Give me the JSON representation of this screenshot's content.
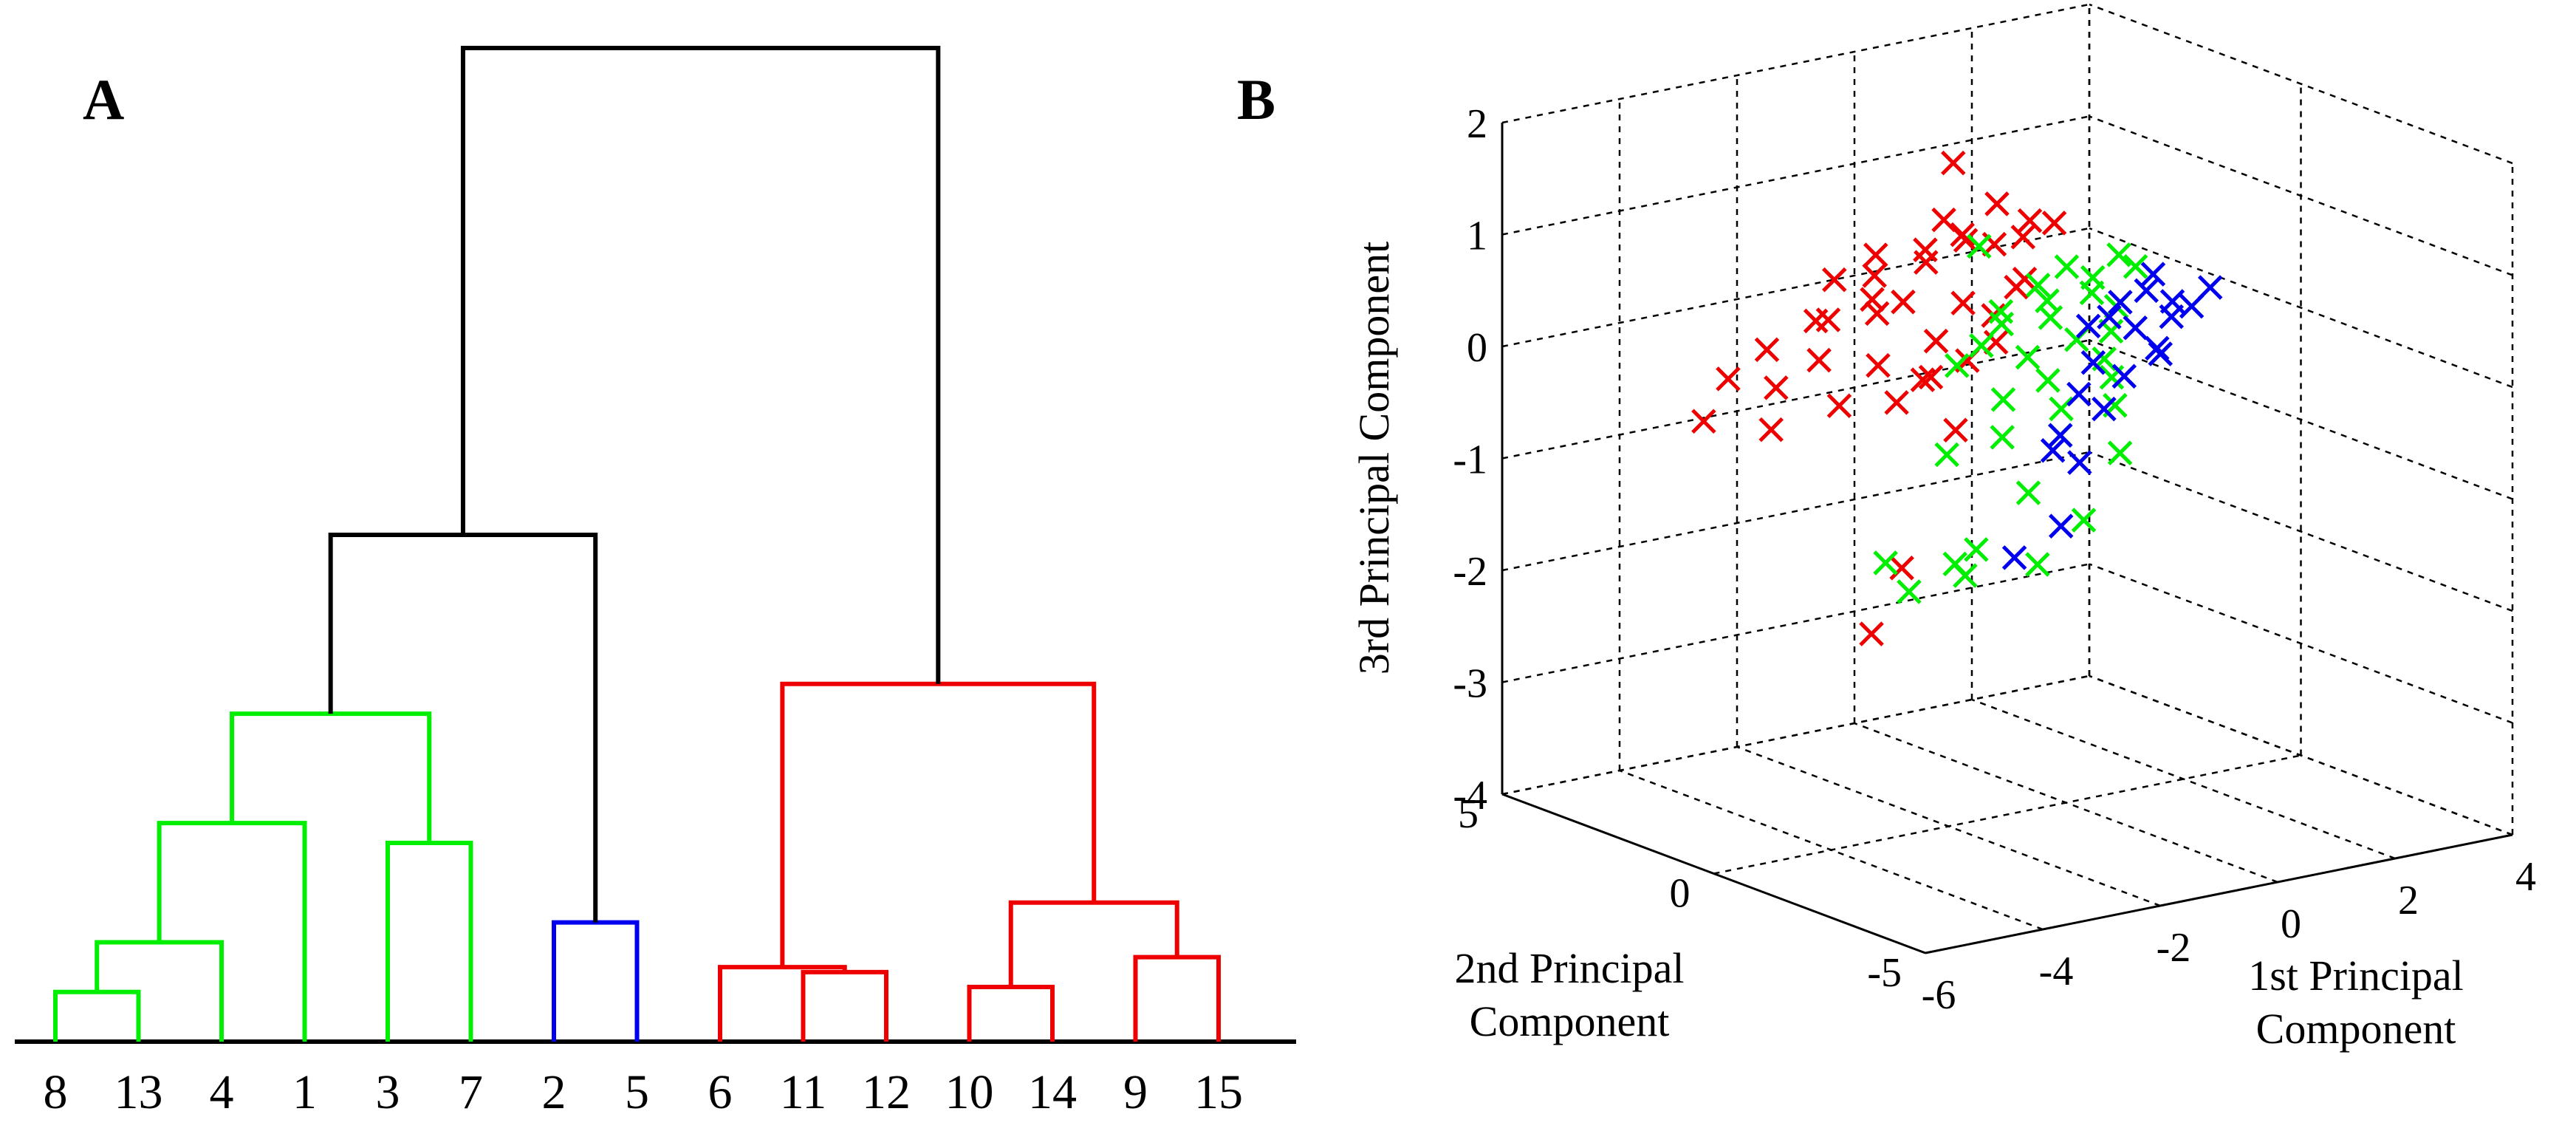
{
  "panel_a": {
    "letter": "A"
  },
  "panel_b": {
    "letter": "B"
  },
  "colors": {
    "green": "#00ee00",
    "blue": "#0000ee",
    "red": "#ee0000",
    "black": "#000000"
  },
  "chart_data": [
    {
      "type": "dendrogram",
      "leaves": [
        "8",
        "13",
        "4",
        "1",
        "3",
        "7",
        "2",
        "5",
        "6",
        "11",
        "12",
        "10",
        "14",
        "9",
        "15"
      ],
      "height_range": [
        0,
        10
      ],
      "merges": [
        {
          "id": "g1",
          "children": [
            "8",
            "13"
          ],
          "height": 0.5,
          "color": "green"
        },
        {
          "id": "g2",
          "children": [
            "g1",
            "4"
          ],
          "height": 1.0,
          "color": "green"
        },
        {
          "id": "g3",
          "children": [
            "g2",
            "1"
          ],
          "height": 2.2,
          "color": "green"
        },
        {
          "id": "g4",
          "children": [
            "3",
            "7"
          ],
          "height": 2.0,
          "color": "green"
        },
        {
          "id": "g5",
          "children": [
            "g3",
            "g4"
          ],
          "height": 3.3,
          "color": "green"
        },
        {
          "id": "b1",
          "children": [
            "2",
            "5"
          ],
          "height": 1.2,
          "color": "blue"
        },
        {
          "id": "k1",
          "children": [
            "g5",
            "b1"
          ],
          "height": 5.1,
          "color": "black"
        },
        {
          "id": "r1",
          "children": [
            "11",
            "12"
          ],
          "height": 0.7,
          "color": "red"
        },
        {
          "id": "r2",
          "children": [
            "6",
            "r1"
          ],
          "height": 0.75,
          "color": "red"
        },
        {
          "id": "r3",
          "children": [
            "10",
            "14"
          ],
          "height": 0.55,
          "color": "red"
        },
        {
          "id": "r4",
          "children": [
            "9",
            "15"
          ],
          "height": 0.85,
          "color": "red"
        },
        {
          "id": "r5",
          "children": [
            "r3",
            "r4"
          ],
          "height": 1.4,
          "color": "red"
        },
        {
          "id": "r6",
          "children": [
            "r2",
            "r5"
          ],
          "height": 3.6,
          "color": "red"
        },
        {
          "id": "k2",
          "children": [
            "k1",
            "r6"
          ],
          "height": 10.0,
          "color": "black"
        }
      ]
    },
    {
      "type": "scatter3d",
      "xlabel": "1st Principal Component",
      "ylabel": "2nd Principal Component",
      "zlabel": "3rd Principal Component",
      "xlim": [
        -6,
        4
      ],
      "ylim": [
        -5,
        5
      ],
      "zlim": [
        -4,
        2
      ],
      "xticks": [
        "-6",
        "-4",
        "-2",
        "0",
        "2",
        "4"
      ],
      "yticks": [
        "-5",
        "0",
        "5"
      ],
      "zticks": [
        "-4",
        "-3",
        "-2",
        "-1",
        "0",
        "1",
        "2"
      ],
      "marker": "x",
      "grid": true,
      "series": [
        {
          "color": "red",
          "points": [
            [
              -1.2,
              1.0,
              1.7
            ],
            [
              -0.6,
              0.8,
              1.3
            ],
            [
              -0.4,
              0.3,
              1.2
            ],
            [
              -0.2,
              0.0,
              1.2
            ],
            [
              -0.9,
              1.2,
              1.0
            ],
            [
              -0.7,
              1.4,
              0.9
            ],
            [
              -0.5,
              1.0,
              0.9
            ],
            [
              -0.3,
              0.6,
              1.0
            ],
            [
              -1.8,
              2.0,
              0.8
            ],
            [
              -1.1,
              1.8,
              0.8
            ],
            [
              -0.8,
              2.2,
              0.6
            ],
            [
              -0.2,
              0.9,
              0.5
            ],
            [
              -1.5,
              2.5,
              0.3
            ],
            [
              -0.9,
              2.6,
              0.2
            ],
            [
              -0.6,
              1.6,
              0.3
            ],
            [
              -0.3,
              1.3,
              0.2
            ],
            [
              -2.1,
              3.0,
              0.1
            ],
            [
              -1.6,
              3.4,
              0.0
            ],
            [
              -1.2,
              2.8,
              0.1
            ],
            [
              -0.7,
              2.1,
              -0.1
            ],
            [
              -0.4,
              1.1,
              0.0
            ],
            [
              -2.5,
              3.6,
              -0.2
            ],
            [
              -1.9,
              3.2,
              -0.3
            ],
            [
              -1.4,
              2.5,
              -0.3
            ],
            [
              -1.0,
              2.0,
              -0.4
            ],
            [
              -0.6,
              1.5,
              -0.2
            ],
            [
              -2.8,
              4.1,
              -0.5
            ],
            [
              -2.2,
              3.8,
              -0.6
            ],
            [
              -1.7,
              3.0,
              -0.7
            ],
            [
              -1.3,
              2.2,
              -0.6
            ],
            [
              -0.8,
              1.5,
              -0.8
            ],
            [
              -3.0,
              4.4,
              -0.9
            ],
            [
              -2.5,
              3.5,
              -0.9
            ],
            [
              -1.5,
              1.8,
              -2.0
            ],
            [
              -1.8,
              2.1,
              -2.6
            ],
            [
              -0.2,
              0.7,
              0.6
            ],
            [
              -1.0,
              1.5,
              1.1
            ],
            [
              -2.0,
              2.7,
              0.5
            ],
            [
              -0.5,
              2.5,
              -0.5
            ],
            [
              -1.1,
              3.0,
              0.4
            ]
          ]
        },
        {
          "color": "green",
          "points": [
            [
              0.3,
              0.4,
              0.7
            ],
            [
              0.6,
              0.2,
              0.6
            ],
            [
              0.1,
              0.8,
              0.5
            ],
            [
              0.8,
              0.5,
              0.4
            ],
            [
              0.4,
              1.0,
              0.3
            ],
            [
              1.0,
              0.2,
              0.3
            ],
            [
              -0.1,
              1.4,
              0.2
            ],
            [
              0.6,
              1.2,
              0.1
            ],
            [
              1.2,
              0.6,
              0.0
            ],
            [
              0.2,
              1.8,
              0.0
            ],
            [
              0.9,
              1.0,
              -0.1
            ],
            [
              0.0,
              2.0,
              -0.2
            ],
            [
              0.5,
              1.6,
              -0.3
            ],
            [
              1.3,
              0.9,
              -0.3
            ],
            [
              -0.2,
              2.3,
              -0.4
            ],
            [
              0.7,
              1.4,
              -0.5
            ],
            [
              1.5,
              1.0,
              -0.5
            ],
            [
              0.3,
              1.9,
              -0.7
            ],
            [
              1.0,
              1.5,
              -0.8
            ],
            [
              1.7,
              1.2,
              -0.8
            ],
            [
              0.5,
              2.2,
              -1.1
            ],
            [
              1.2,
              1.8,
              -1.1
            ],
            [
              -0.3,
              2.4,
              -1.2
            ],
            [
              2.0,
              1.5,
              -1.3
            ],
            [
              0.8,
              2.0,
              -1.6
            ],
            [
              1.6,
              1.8,
              -1.9
            ],
            [
              0.2,
              2.4,
              -2.1
            ],
            [
              1.1,
              2.2,
              -2.3
            ],
            [
              -0.8,
              2.6,
              -2.4
            ],
            [
              0.2,
              2.9,
              -2.3
            ],
            [
              1.4,
              0.3,
              0.6
            ],
            [
              0.9,
              0.0,
              0.8
            ],
            [
              -0.4,
              1.5,
              0.8
            ],
            [
              0.3,
              2.8,
              -2.4
            ],
            [
              -1.2,
              2.6,
              -2.1
            ]
          ]
        },
        {
          "color": "blue",
          "points": [
            [
              1.5,
              0.8,
              0.2
            ],
            [
              1.8,
              0.6,
              0.3
            ],
            [
              2.1,
              0.4,
              0.2
            ],
            [
              1.7,
              0.3,
              0.5
            ],
            [
              2.3,
              0.7,
              0.0
            ],
            [
              1.9,
              1.0,
              -0.1
            ],
            [
              2.5,
              0.5,
              0.1
            ],
            [
              1.6,
              1.2,
              0.0
            ],
            [
              2.2,
              0.9,
              -0.3
            ],
            [
              1.4,
              1.3,
              -0.4
            ],
            [
              2.0,
              1.4,
              -0.6
            ],
            [
              1.3,
              1.5,
              -0.7
            ],
            [
              1.8,
              1.6,
              -0.9
            ],
            [
              1.2,
              1.8,
              -1.1
            ],
            [
              1.6,
              1.9,
              -1.4
            ],
            [
              1.0,
              1.7,
              -1.2
            ],
            [
              1.5,
              2.2,
              -2.0
            ],
            [
              2.6,
              0.2,
              0.3
            ],
            [
              2.4,
              1.1,
              -0.4
            ],
            [
              1.1,
              1.0,
              0.0
            ],
            [
              -1.6,
              -1.0,
              -1.5
            ]
          ]
        }
      ]
    }
  ]
}
